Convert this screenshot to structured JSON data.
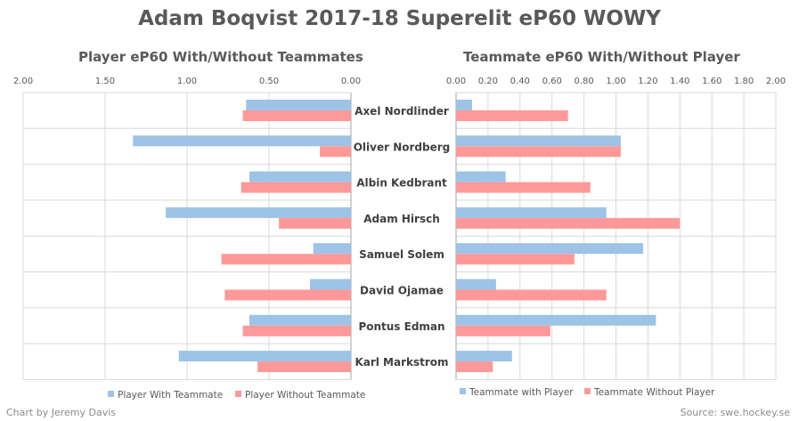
{
  "title": "Adam Boqvist 2017-18 Superelit eP60 WOWY",
  "credit": "Chart by Jeremy Davis",
  "source": "Source: swe.hockey.se",
  "colors": {
    "with": "#9dc3e6",
    "without": "#ff9999",
    "grid": "#d9d9d9",
    "axis": "#a6a6a6"
  },
  "chart_data": [
    {
      "type": "bar",
      "orientation": "horizontal",
      "title": "Player eP60 With/Without Teammates",
      "x_reversed": true,
      "xlim": [
        0,
        2.0
      ],
      "xticks": [
        "2.00",
        "1.50",
        "1.00",
        "0.50",
        "0.00"
      ],
      "categories": [
        "Axel Nordlinder",
        "Oliver Nordberg",
        "Albin Kedbrant",
        "Adam Hirsch",
        "Samuel Solem",
        "David Ojamae",
        "Pontus Edman",
        "Karl Markstrom"
      ],
      "series": [
        {
          "name": "Player With Teammate",
          "values": [
            0.64,
            1.33,
            0.62,
            1.13,
            0.23,
            0.25,
            0.62,
            1.05
          ]
        },
        {
          "name": "Player Without Teammate",
          "values": [
            0.66,
            0.19,
            0.67,
            0.44,
            0.79,
            0.77,
            0.66,
            0.57
          ]
        }
      ],
      "legend_position": "bottom"
    },
    {
      "type": "bar",
      "orientation": "horizontal",
      "title": "Teammate eP60 With/Without Player",
      "xlim": [
        0,
        2.0
      ],
      "xticks": [
        "0.00",
        "0.20",
        "0.40",
        "0.60",
        "0.80",
        "1.00",
        "1.20",
        "1.40",
        "1.60",
        "1.80",
        "2.00"
      ],
      "categories": [
        "Axel Nordlinder",
        "Oliver Nordberg",
        "Albin Kedbrant",
        "Adam Hirsch",
        "Samuel Solem",
        "David Ojamae",
        "Pontus Edman",
        "Karl Markstrom"
      ],
      "series": [
        {
          "name": "Teammate with Player",
          "values": [
            0.1,
            1.03,
            0.31,
            0.94,
            1.17,
            0.25,
            1.25,
            0.35
          ]
        },
        {
          "name": "Teammate Without Player",
          "values": [
            0.7,
            1.03,
            0.84,
            1.4,
            0.74,
            0.94,
            0.59,
            0.23
          ]
        }
      ],
      "legend_position": "bottom"
    }
  ]
}
